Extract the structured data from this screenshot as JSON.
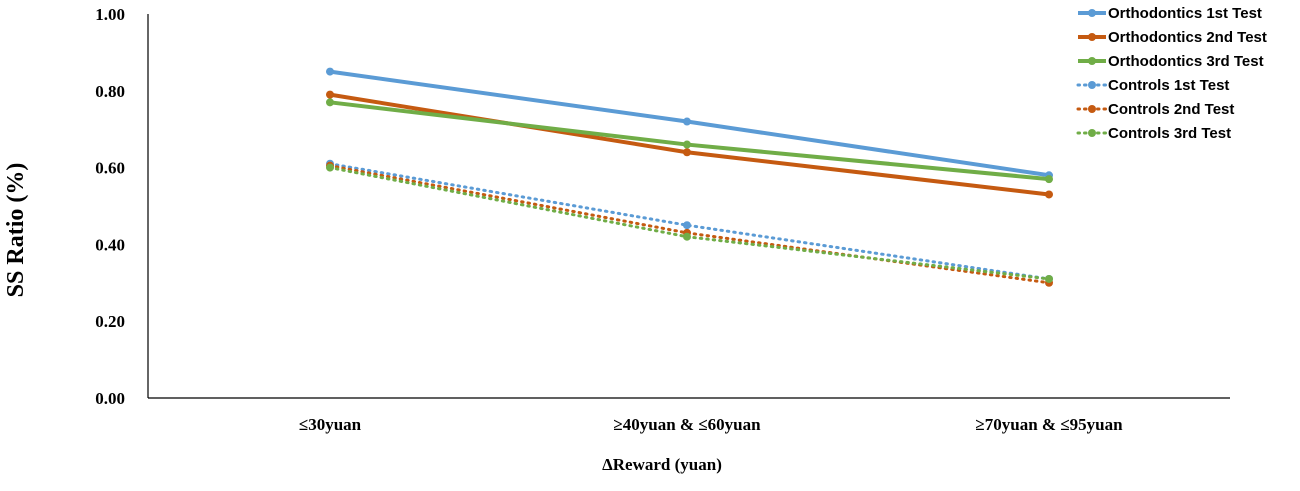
{
  "chart_data": {
    "type": "line",
    "title": "",
    "xlabel": "ΔReward (yuan)",
    "ylabel": "SS Ratio (%)",
    "ylim": [
      0,
      1
    ],
    "yticks": [
      "0.00",
      "0.20",
      "0.40",
      "0.60",
      "0.80",
      "1.00"
    ],
    "categories": [
      "≤30yuan",
      "≥40yuan & ≤60yuan",
      "≥70yuan & ≤95yuan"
    ],
    "grid": false,
    "legend_position": "top-right",
    "series": [
      {
        "name": "Orthodontics 1st Test",
        "values": [
          0.85,
          0.72,
          0.58
        ],
        "color": "#5b9bd5",
        "style": "solid"
      },
      {
        "name": "Orthodontics 2nd Test",
        "values": [
          0.79,
          0.64,
          0.53
        ],
        "color": "#c55a11",
        "style": "solid"
      },
      {
        "name": "Orthodontics 3rd Test",
        "values": [
          0.77,
          0.66,
          0.57
        ],
        "color": "#70ad47",
        "style": "solid"
      },
      {
        "name": "Controls 1st Test",
        "values": [
          0.61,
          0.45,
          0.31
        ],
        "color": "#5b9bd5",
        "style": "dotted"
      },
      {
        "name": "Controls 2nd Test",
        "values": [
          0.605,
          0.43,
          0.3
        ],
        "color": "#c55a11",
        "style": "dotted"
      },
      {
        "name": "Controls 3rd Test",
        "values": [
          0.6,
          0.42,
          0.31
        ],
        "color": "#70ad47",
        "style": "dotted"
      }
    ]
  }
}
